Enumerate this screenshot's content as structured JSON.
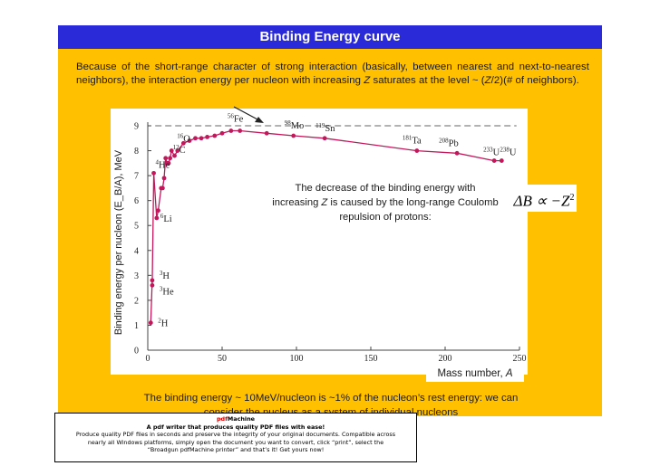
{
  "slide": {
    "title": "Binding Energy curve",
    "intro_1": "Because of the short-range character of strong interaction (basically, between nearest and next-to-nearest neighbors), the interaction energy per nucleon with increasing ",
    "intro_Z": "Z",
    "intro_2": " saturates at the level ~ (",
    "intro_Z2": "Z",
    "intro_3": "/2)(# of neighbors).",
    "callout_1": "The decrease of the binding energy with",
    "callout_2a": "increasing ",
    "callout_2Z": "Z",
    "callout_2b": " is caused by the long-range Coulomb",
    "callout_3": "repulsion of protons:",
    "formula": "ΔB ∝ −Z",
    "formula_exp": "2",
    "xlabel_text": "Mass number, ",
    "xlabel_var": "A",
    "ylabel": "Binding energy per nucleon (E_B/A), MeV",
    "footer_1": "The binding energy ~ 10MeV/nucleon is ~1% of the nucleon’s rest energy: we can",
    "footer_2": "consider the nucleus as a system of individual nucleons"
  },
  "ad": {
    "brand_pdf": "pdf",
    "brand_name": "Machine",
    "tagline": "A pdf writer that produces quality PDF files with ease!",
    "line1": "Produce quality PDF files in seconds and preserve the integrity of your original documents. Compatible across",
    "line2": "nearly all Windows platforms, simply open the document you want to convert, click “print”, select the",
    "line3": "“Broadgun pdfMachine printer” and that’s it! Get yours now!"
  },
  "colors": {
    "title_bar": "#2a2ad8",
    "panel": "#ffc000",
    "curve": "#c2185b",
    "saturation_line": "#999999"
  },
  "chart_data": {
    "type": "scatter",
    "xlabel": "Mass number, A",
    "ylabel": "Binding energy per nucleon (E_B/A), MeV",
    "xlim": [
      0,
      250
    ],
    "ylim": [
      0,
      9
    ],
    "xticks": [
      0,
      50,
      100,
      150,
      200,
      250
    ],
    "yticks": [
      0,
      1,
      2,
      3,
      4,
      5,
      6,
      7,
      8,
      9
    ],
    "saturation_level": 9.0,
    "series": [
      {
        "x": [
          2,
          3,
          3,
          4,
          6,
          7,
          9,
          10,
          11,
          12,
          13,
          14,
          15,
          16,
          18,
          20,
          24,
          28,
          32,
          36,
          40,
          45,
          50,
          56,
          62,
          80,
          98,
          119,
          181,
          208,
          233,
          238
        ],
        "y": [
          1.1,
          2.8,
          2.6,
          7.1,
          5.3,
          5.6,
          6.5,
          6.5,
          6.9,
          7.7,
          7.5,
          7.5,
          7.7,
          8.0,
          7.8,
          8.0,
          8.3,
          8.4,
          8.5,
          8.5,
          8.55,
          8.6,
          8.7,
          8.8,
          8.8,
          8.7,
          8.6,
          8.5,
          8.0,
          7.9,
          7.6,
          7.6
        ]
      }
    ],
    "annotations": [
      {
        "mass": "2",
        "symbol": "H",
        "x": 2,
        "y": 1.1
      },
      {
        "mass": "3",
        "symbol": "H",
        "x": 3,
        "y": 2.8
      },
      {
        "mass": "3",
        "symbol": "He",
        "x": 3,
        "y": 2.6
      },
      {
        "mass": "6",
        "symbol": "Li",
        "x": 6,
        "y": 5.3
      },
      {
        "mass": "4",
        "symbol": "He",
        "x": 4,
        "y": 7.1
      },
      {
        "mass": "12",
        "symbol": "C",
        "x": 12,
        "y": 7.7
      },
      {
        "mass": "16",
        "symbol": "O",
        "x": 16,
        "y": 8.0
      },
      {
        "mass": "56",
        "symbol": "Fe",
        "x": 56,
        "y": 8.8
      },
      {
        "mass": "98",
        "symbol": "Mo",
        "x": 98,
        "y": 8.6
      },
      {
        "mass": "119",
        "symbol": "Sn",
        "x": 119,
        "y": 8.5
      },
      {
        "mass": "181",
        "symbol": "Ta",
        "x": 181,
        "y": 8.0
      },
      {
        "mass": "208",
        "symbol": "Pb",
        "x": 208,
        "y": 7.9
      },
      {
        "mass": "233",
        "symbol": "U",
        "x": 233,
        "y": 7.6
      },
      {
        "mass": "238",
        "symbol": "U",
        "x": 238,
        "y": 7.6
      }
    ]
  }
}
